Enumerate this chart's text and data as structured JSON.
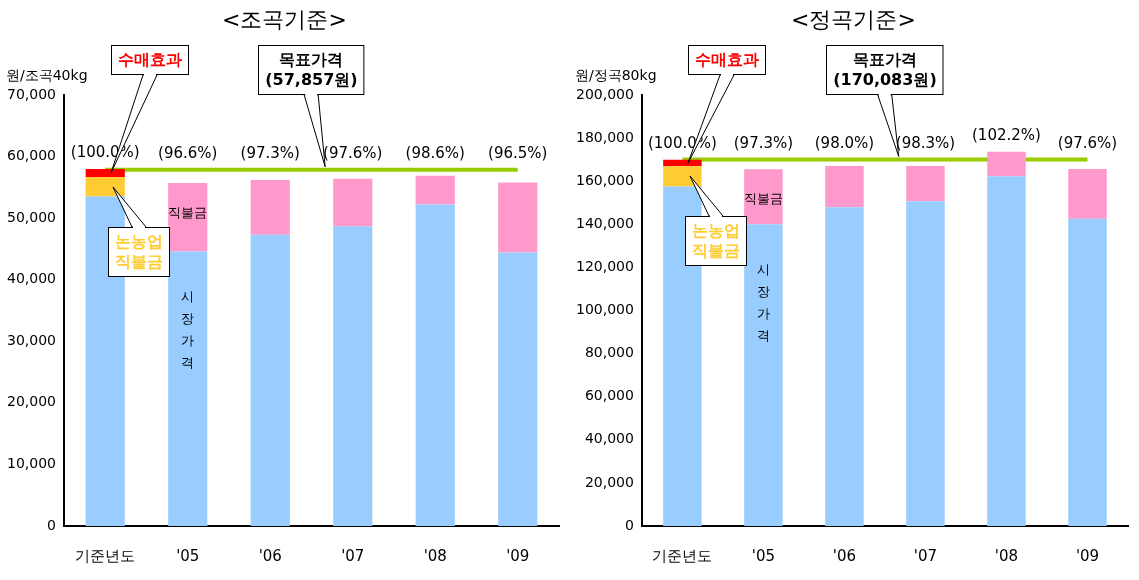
{
  "chart_data": [
    {
      "type": "bar",
      "title": "<조곡기준>",
      "ylabel": "원/조곡40kg",
      "stacked": true,
      "grid": false,
      "legend": false,
      "categories": [
        "기준년도",
        "'05",
        "'06",
        "'07",
        "'08",
        "'09"
      ],
      "series": [
        {
          "name": "시장가격",
          "color": "#99ccff",
          "values": [
            53500,
            44600,
            47300,
            48700,
            52200,
            44400
          ]
        },
        {
          "name": "논농업 직불금",
          "color": "#ffcc33",
          "values": [
            3200,
            null,
            null,
            null,
            null,
            null
          ]
        },
        {
          "name": "수매효과",
          "color": "#ff0000",
          "values": [
            1300,
            null,
            null,
            null,
            null,
            null
          ]
        },
        {
          "name": "직불금",
          "color": "#ff99cc",
          "values": [
            null,
            11100,
            8900,
            7700,
            4700,
            11400
          ]
        }
      ],
      "annotations": [
        {
          "text": "(100.0%)",
          "x": "기준년도",
          "y": 58000
        },
        {
          "text": "(96.6%)",
          "x": "'05",
          "y": 55700
        },
        {
          "text": "(97.3%)",
          "x": "'06",
          "y": 56200
        },
        {
          "text": "(97.6%)",
          "x": "'07",
          "y": 56400
        },
        {
          "text": "(98.6%)",
          "x": "'08",
          "y": 56900
        },
        {
          "text": "(96.5%)",
          "x": "'09",
          "y": 55800
        }
      ],
      "ylim": [
        0,
        70000
      ],
      "yticks": [
        0,
        {
          "value": 10000,
          "label": "10,000"
        },
        {
          "value": 20000,
          "label": "20,000"
        },
        {
          "value": 30000,
          "label": "30,000"
        },
        {
          "value": 40000,
          "label": "40,000"
        },
        {
          "value": 50000,
          "label": "50,000"
        },
        {
          "value": 60000,
          "label": "60,000"
        },
        {
          "value": 70000,
          "label": "70,000"
        }
      ],
      "ref_lines": [
        {
          "axis": "y",
          "value": 57857,
          "label": "목표가격 (57,857원)",
          "color": "#99cc00"
        }
      ]
    },
    {
      "type": "bar",
      "title": "<정곡기준>",
      "ylabel": "원/정곡80kg",
      "stacked": true,
      "grid": false,
      "legend": false,
      "categories": [
        "기준년도",
        "'05",
        "'06",
        "'07",
        "'08",
        "'09"
      ],
      "series": [
        {
          "name": "시장가격",
          "color": "#99ccff",
          "values": [
            157500,
            140000,
            147900,
            150700,
            162300,
            142600
          ]
        },
        {
          "name": "논농업 직불금",
          "color": "#ffcc33",
          "values": [
            9400,
            null,
            null,
            null,
            null,
            null
          ]
        },
        {
          "name": "수매효과",
          "color": "#ff0000",
          "values": [
            3100,
            null,
            null,
            null,
            null,
            null
          ]
        },
        {
          "name": "직불금",
          "color": "#ff99cc",
          "values": [
            null,
            25500,
            19100,
            16300,
            11400,
            23100
          ]
        }
      ],
      "annotations": [
        {
          "text": "(100.0%)",
          "x": "기준년도",
          "y": 170000
        },
        {
          "text": "(97.3%)",
          "x": "'05",
          "y": 165500
        },
        {
          "text": "(98.0%)",
          "x": "'06",
          "y": 167000
        },
        {
          "text": "(98.3%)",
          "x": "'07",
          "y": 167000
        },
        {
          "text": "(102.2%)",
          "x": "'08",
          "y": 173700
        },
        {
          "text": "(97.6%)",
          "x": "'09",
          "y": 165700
        }
      ],
      "ylim": [
        0,
        200000
      ],
      "yticks": [
        0,
        {
          "value": 20000,
          "label": "20,000"
        },
        {
          "value": 40000,
          "label": "40,000"
        },
        {
          "value": 60000,
          "label": "60,000"
        },
        {
          "value": 80000,
          "label": "80,000"
        },
        {
          "value": 100000,
          "label": "100,000"
        },
        {
          "value": 120000,
          "label": "120,000"
        },
        {
          "value": 140000,
          "label": "140,000"
        },
        {
          "value": 160000,
          "label": "160,000"
        },
        {
          "value": 180000,
          "label": "180,000"
        },
        {
          "value": 200000,
          "label": "200,000"
        }
      ],
      "ref_lines": [
        {
          "axis": "y",
          "value": 170083,
          "label": "목표가격 (170,083원)",
          "color": "#99cc00"
        }
      ]
    }
  ]
}
